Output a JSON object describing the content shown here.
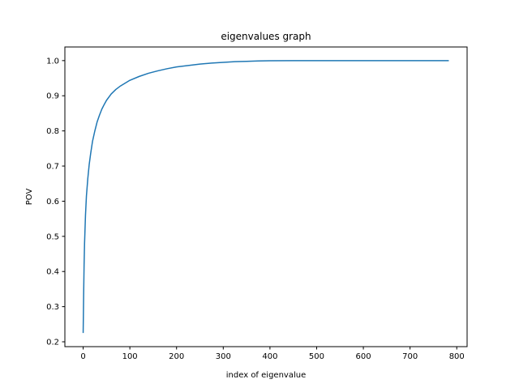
{
  "chart_data": {
    "type": "line",
    "title": "eigenvalues graph",
    "xlabel": "index of eigenvalue",
    "ylabel": "POV",
    "xlim": [
      -39.15,
      822.15
    ],
    "ylim": [
      0.1862,
      1.0388
    ],
    "xticks": [
      0,
      100,
      200,
      300,
      400,
      500,
      600,
      700,
      800
    ],
    "yticks": [
      0.2,
      0.3,
      0.4,
      0.5,
      0.6,
      0.7,
      0.8,
      0.9,
      1.0
    ],
    "xtick_labels": [
      "0",
      "100",
      "200",
      "300",
      "400",
      "500",
      "600",
      "700",
      "800"
    ],
    "ytick_labels": [
      "0.2",
      "0.3",
      "0.4",
      "0.5",
      "0.6",
      "0.7",
      "0.8",
      "0.9",
      "1.0"
    ],
    "grid": false,
    "legend": "none",
    "colors": {
      "series": "#1f77b4"
    },
    "series": [
      {
        "x": [
          0,
          1,
          2,
          3,
          5,
          7,
          10,
          13,
          16,
          20,
          25,
          30,
          35,
          40,
          45,
          50,
          60,
          70,
          80,
          90,
          100,
          120,
          140,
          160,
          180,
          200,
          225,
          250,
          275,
          300,
          325,
          350,
          375,
          400,
          450,
          500,
          550,
          600,
          650,
          700,
          750,
          783
        ],
        "y": [
          0.225,
          0.33,
          0.42,
          0.48,
          0.56,
          0.615,
          0.665,
          0.705,
          0.735,
          0.77,
          0.8,
          0.826,
          0.845,
          0.862,
          0.875,
          0.887,
          0.905,
          0.918,
          0.928,
          0.936,
          0.944,
          0.955,
          0.964,
          0.971,
          0.977,
          0.982,
          0.986,
          0.99,
          0.993,
          0.995,
          0.997,
          0.998,
          0.999,
          0.9995,
          1.0,
          1.0,
          1.0,
          1.0,
          1.0,
          1.0,
          1.0,
          1.0
        ]
      }
    ]
  }
}
